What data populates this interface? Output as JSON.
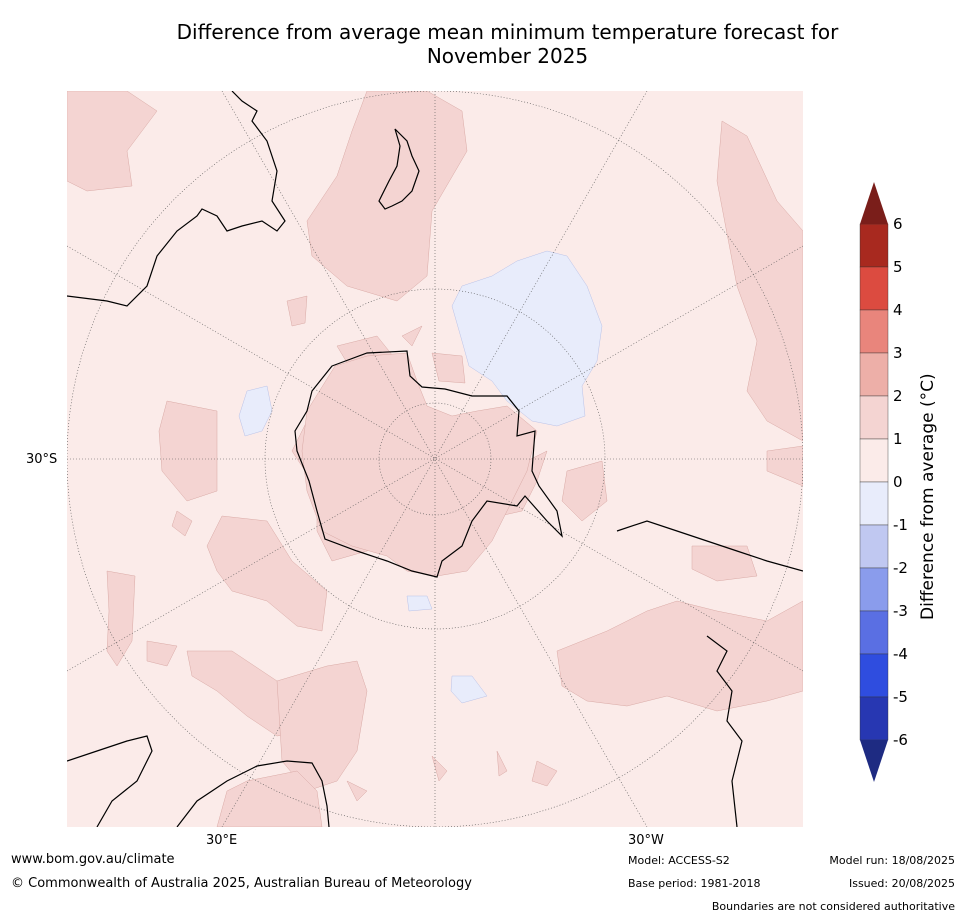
{
  "title_line1": "Difference from average mean minimum temperature forecast for",
  "title_line2": "November 2025",
  "map_labels": {
    "lat": "30°S",
    "lon_east": "30°E",
    "lon_west": "30°W"
  },
  "colorbar": {
    "title": "Difference from average (°C)",
    "ticks": [
      "6",
      "5",
      "4",
      "3",
      "2",
      "1",
      "0",
      "-1",
      "-2",
      "-3",
      "-4",
      "-5",
      "-6"
    ],
    "colors": {
      "above_6": "#7a1e1a",
      "5_6": "#a8291f",
      "4_5": "#dc4b40",
      "3_4": "#e9857c",
      "2_3": "#edafa8",
      "1_2": "#f4d4d2",
      "0_1": "#fbebe9",
      "m1_0": "#e8ecfb",
      "m2_m1": "#c0c8f1",
      "m3_m2": "#8a9cec",
      "m4_m3": "#5a6fe3",
      "m5_m4": "#2f4ddf",
      "m6_m5": "#2737b2",
      "below_m6": "#1e2b82"
    }
  },
  "footer": {
    "website": "www.bom.gov.au/climate",
    "copyright": "© Commonwealth of Australia 2025, Australian Bureau of Meteorology",
    "model": "Model: ACCESS-S2",
    "base_period": "Base period: 1981-2018",
    "model_run": "Model run: 18/08/2025",
    "issued": "Issued: 20/08/2025",
    "disclaimer": "Boundaries are not considered authoritative"
  }
}
